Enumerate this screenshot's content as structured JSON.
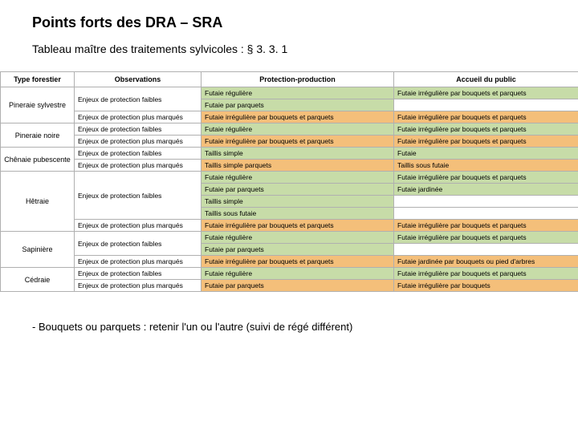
{
  "colors": {
    "green": "#c7dca8",
    "orange": "#f4bf7a",
    "border": "#b0b0b0",
    "accent_title": "#3a3a3a"
  },
  "title": "Points forts des DRA – SRA",
  "subtitle": "Tableau maître des traitements sylvicoles : § 3. 3. 1",
  "headers": {
    "type": "Type forestier",
    "obs": "Observations",
    "pp": "Protection-production",
    "acc": "Accueil du public"
  },
  "rows": [
    {
      "type": "Pineraie sylvestre",
      "type_rowspan": 3,
      "obs": "Enjeux de protection faibles",
      "obs_rowspan": 2,
      "pp": "Futaie régulière",
      "pp_bg": "green",
      "acc": "Futaie irrégulière par bouquets et parquets",
      "acc_bg": "green"
    },
    {
      "pp": "Futaie par parquets",
      "pp_bg": "green",
      "acc": "",
      "acc_bg": ""
    },
    {
      "obs": "Enjeux de protection plus marqués",
      "pp": "Futaie irrégulière par bouquets et parquets",
      "pp_bg": "orange",
      "acc": "Futaie irrégulière par bouquets et parquets",
      "acc_bg": "orange"
    },
    {
      "type": "Pineraie noire",
      "type_rowspan": 2,
      "obs": "Enjeux de protection faibles",
      "pp": "Futaie régulière",
      "pp_bg": "green",
      "acc": "Futaie irrégulière par bouquets et parquets",
      "acc_bg": "green"
    },
    {
      "obs": "Enjeux de protection plus marqués",
      "pp": "Futaie irrégulière par bouquets et parquets",
      "pp_bg": "orange",
      "acc": "Futaie irrégulière par bouquets et parquets",
      "acc_bg": "orange"
    },
    {
      "type": "Chênaie pubescente",
      "type_rowspan": 2,
      "obs": "Enjeux de protection faibles",
      "pp": "Taillis simple",
      "pp_bg": "green",
      "acc": "Futaie",
      "acc_bg": "green"
    },
    {
      "obs": "Enjeux de protection plus marqués",
      "pp": "Taillis simple parquets",
      "pp_bg": "orange",
      "acc": "Taillis sous futaie",
      "acc_bg": "orange"
    },
    {
      "type": "Hêtraie",
      "type_rowspan": 5,
      "obs": "Enjeux de protection faibles",
      "obs_rowspan": 4,
      "pp": "Futaie régulière",
      "pp_bg": "green",
      "acc": "Futaie irrégulière par bouquets et parquets",
      "acc_bg": "green"
    },
    {
      "pp": "Futaie par parquets",
      "pp_bg": "green",
      "acc": "Futaie jardinée",
      "acc_bg": "green"
    },
    {
      "pp": "Taillis simple",
      "pp_bg": "green",
      "acc": "",
      "acc_bg": ""
    },
    {
      "pp": "Taillis sous futaie",
      "pp_bg": "green",
      "acc": "",
      "acc_bg": ""
    },
    {
      "obs": "Enjeux de protection plus marqués",
      "pp": "Futaie irrégulière par bouquets et parquets",
      "pp_bg": "orange",
      "acc": "Futaie irrégulière par bouquets et parquets",
      "acc_bg": "orange"
    },
    {
      "type": "Sapinière",
      "type_rowspan": 3,
      "obs": "Enjeux de protection faibles",
      "obs_rowspan": 2,
      "pp": "Futaie régulière",
      "pp_bg": "green",
      "acc": "Futaie irrégulière par bouquets et parquets",
      "acc_bg": "green"
    },
    {
      "pp": "Futaie par parquets",
      "pp_bg": "green",
      "acc": "",
      "acc_bg": ""
    },
    {
      "obs": "Enjeux de protection plus marqués",
      "pp": "Futaie irrégulière par bouquets et parquets",
      "pp_bg": "orange",
      "acc": "Futaie jardinée par bouquets ou pied d'arbres",
      "acc_bg": "orange"
    },
    {
      "type": "Cédraie",
      "type_rowspan": 2,
      "obs": "Enjeux de protection faibles",
      "pp": "Futaie régulière",
      "pp_bg": "green",
      "acc": "Futaie irrégulière par bouquets et parquets",
      "acc_bg": "green"
    },
    {
      "obs": "Enjeux de protection plus marqués",
      "pp": "Futaie par parquets",
      "pp_bg": "orange",
      "acc": "Futaie irrégulière par bouquets",
      "acc_bg": "orange"
    }
  ],
  "footnote": "Bouquets ou parquets : retenir l'un ou l'autre (suivi de régé différent)"
}
